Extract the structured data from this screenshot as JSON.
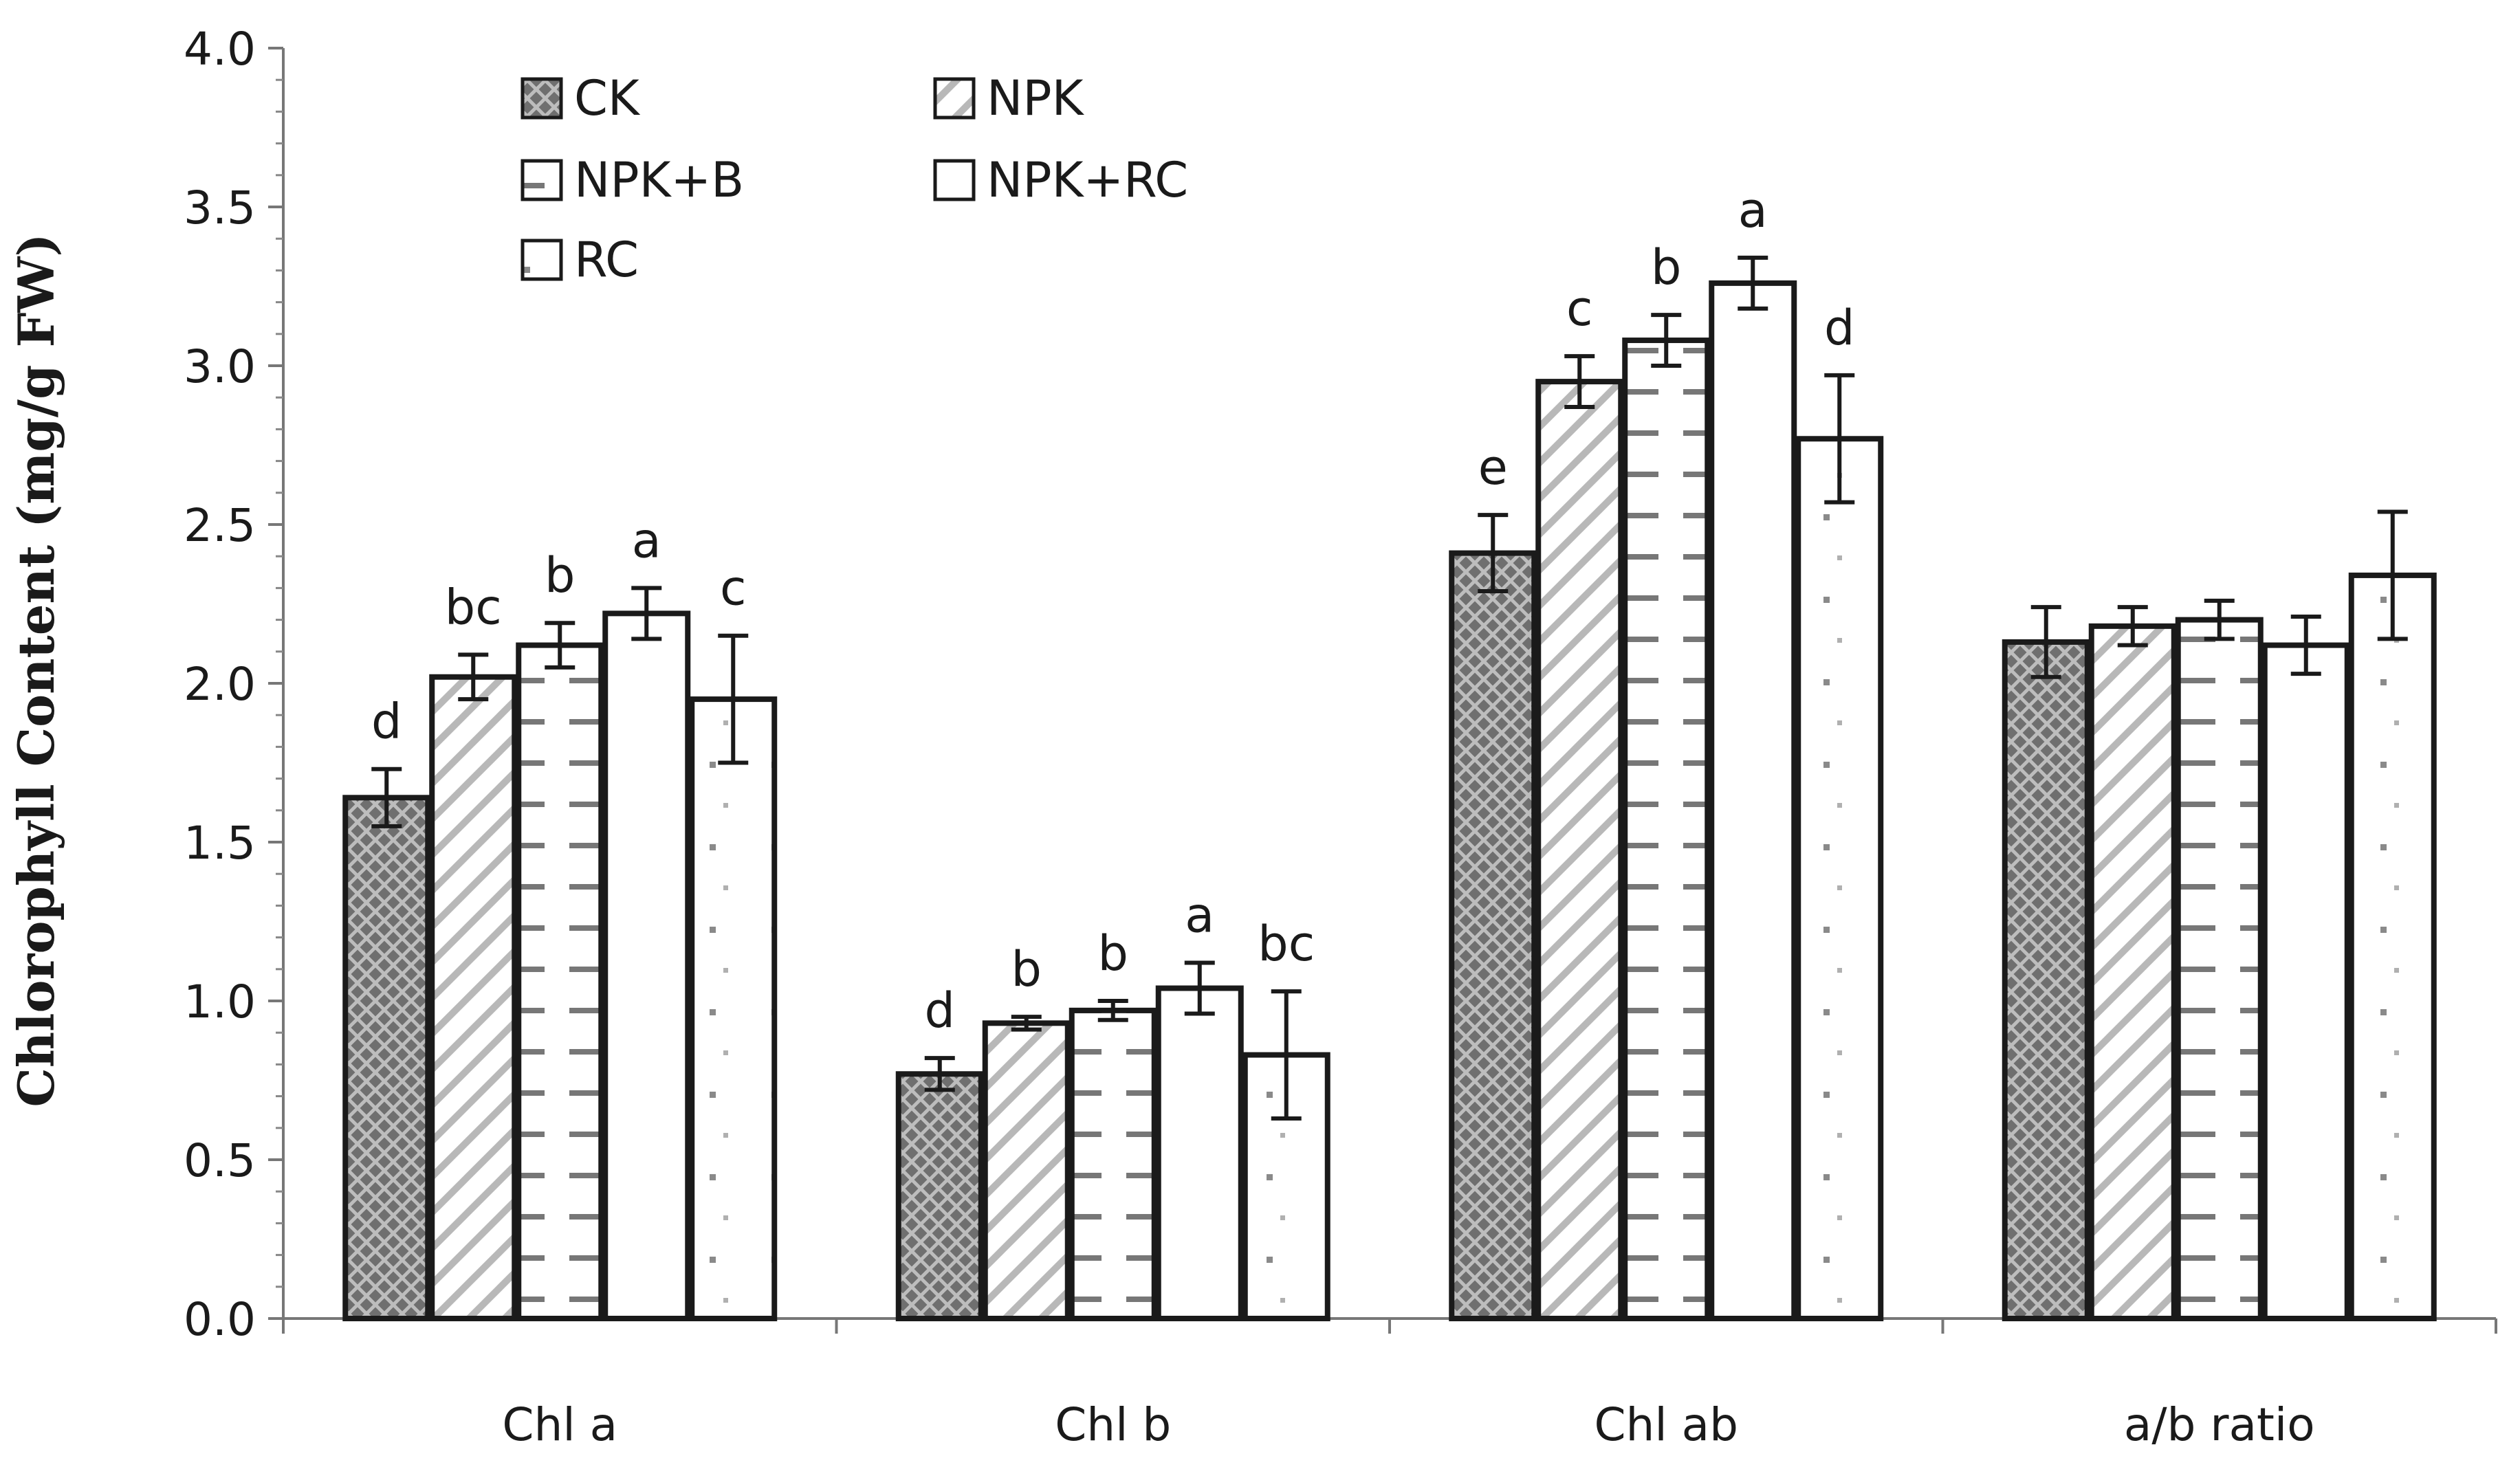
{
  "chart_data": {
    "type": "bar",
    "title": "",
    "xlabel": "",
    "ylabel": "Chlorophyll Content (mg/g FW)",
    "ylim": [
      0,
      4.0
    ],
    "yticks": [
      "0.0",
      "0.5",
      "1.0",
      "1.5",
      "2.0",
      "2.5",
      "3.0",
      "3.5",
      "4.0"
    ],
    "grid": false,
    "legend_position": "top-left",
    "categories": [
      "Chl a",
      "Chl b",
      "Chl ab",
      "a/b ratio"
    ],
    "series": [
      {
        "name": "CK",
        "pattern": "crosshatch",
        "values": [
          1.64,
          0.77,
          2.41,
          2.13
        ],
        "errors": [
          0.09,
          0.05,
          0.12,
          0.11
        ],
        "letters": [
          "d",
          "d",
          "e",
          ""
        ]
      },
      {
        "name": "NPK",
        "pattern": "diagonal",
        "values": [
          2.02,
          0.93,
          2.95,
          2.18
        ],
        "errors": [
          0.07,
          0.02,
          0.08,
          0.06
        ],
        "letters": [
          "bc",
          "b",
          "c",
          ""
        ]
      },
      {
        "name": "NPK+B",
        "pattern": "dash",
        "values": [
          2.12,
          0.97,
          3.08,
          2.2
        ],
        "errors": [
          0.07,
          0.03,
          0.08,
          0.06
        ],
        "letters": [
          "b",
          "b",
          "b",
          ""
        ]
      },
      {
        "name": "NPK+RC",
        "pattern": "blank",
        "values": [
          2.22,
          1.04,
          3.26,
          2.12
        ],
        "errors": [
          0.08,
          0.08,
          0.08,
          0.09
        ],
        "letters": [
          "a",
          "a",
          "a",
          ""
        ]
      },
      {
        "name": "RC",
        "pattern": "dots",
        "values": [
          1.95,
          0.83,
          2.77,
          2.34
        ],
        "errors": [
          0.2,
          0.2,
          0.2,
          0.2
        ],
        "letters": [
          "c",
          "bc",
          "d",
          ""
        ]
      }
    ],
    "colors": {
      "bar_stroke": "#1a1a1a",
      "ck_fill": "#6f6f6f",
      "ck_pattern": "#b9b9b9",
      "pattern_ink": "#8a8a8a"
    }
  }
}
